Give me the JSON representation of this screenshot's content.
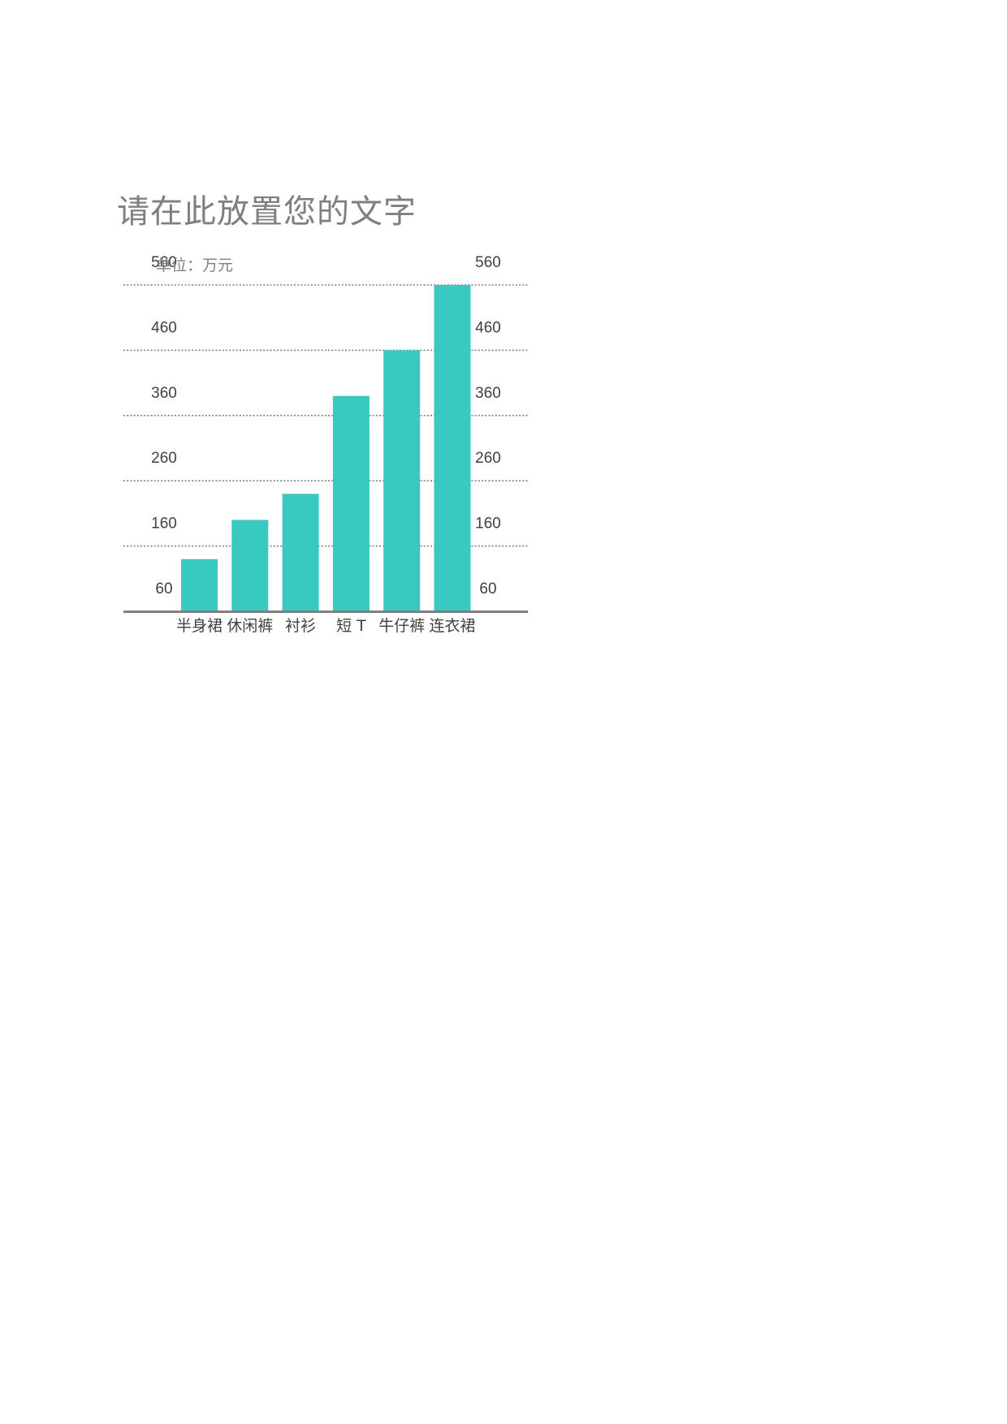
{
  "page": {
    "title": "请在此放置您的文字"
  },
  "chart_data": {
    "type": "bar",
    "unit_label": "单位：万元",
    "categories": [
      "半身裙",
      "休闲裤",
      "衬衫",
      "短 T",
      "牛仔裤",
      "连衣裙"
    ],
    "values": [
      140,
      200,
      240,
      390,
      460,
      560
    ],
    "ylim": [
      60,
      560
    ],
    "yticks": [
      60,
      160,
      260,
      360,
      460,
      560
    ],
    "left_axis": true,
    "right_axis": true,
    "grid": true,
    "grid_style": "dotted",
    "bar_color": "#38c9c0",
    "grid_color": "#7f7f7f",
    "baseline_color": "#7f7f7f",
    "tick_color": "#404040"
  }
}
